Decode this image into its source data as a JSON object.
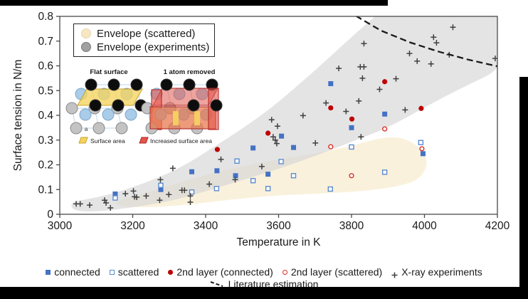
{
  "figure": {
    "background": "#ffffff",
    "redaction_color": "#000000",
    "axis_color": "#4a4a4a",
    "text_color": "#1a1a1a"
  },
  "chart_data": {
    "type": "scatter",
    "title": "",
    "xlabel": "Temperature in K",
    "ylabel": "Surface tension in N/m",
    "xlim": [
      3000,
      4200
    ],
    "ylim": [
      0,
      0.8
    ],
    "xticks": [
      3000,
      3200,
      3400,
      3600,
      3800,
      4000,
      4200
    ],
    "yticks": [
      0,
      0.1,
      0.2,
      0.3,
      0.4,
      0.5,
      0.6,
      0.7,
      0.8
    ],
    "ytick_labels": [
      "0",
      "0.1",
      "0.2",
      "0.3",
      "0.4",
      "0.5",
      "0.6",
      "0.7",
      "0.8"
    ],
    "grid": false,
    "legend_position": "bottom",
    "envelope_legend": [
      {
        "label": "Envelope (scattered)",
        "color": "#F7E7C3"
      },
      {
        "label": "Envelope (experiments)",
        "color": "#A0A0A0"
      }
    ],
    "envelopes": [
      {
        "name": "Envelope (scattered)",
        "fill": "#FAF0D8",
        "opacity": 0.9,
        "outline": [
          [
            3140,
            0.048
          ],
          [
            3250,
            0.092
          ],
          [
            3350,
            0.138
          ],
          [
            3450,
            0.178
          ],
          [
            3560,
            0.212
          ],
          [
            3680,
            0.24
          ],
          [
            3790,
            0.272
          ],
          [
            3880,
            0.31
          ],
          [
            3940,
            0.312
          ],
          [
            3990,
            0.268
          ],
          [
            4012,
            0.205
          ],
          [
            3985,
            0.138
          ],
          [
            3920,
            0.11
          ],
          [
            3820,
            0.092
          ],
          [
            3700,
            0.083
          ],
          [
            3580,
            0.075
          ],
          [
            3460,
            0.058
          ],
          [
            3350,
            0.038
          ],
          [
            3250,
            0.028
          ],
          [
            3175,
            0.03
          ]
        ]
      },
      {
        "name": "Envelope (experiments)",
        "fill": "#D6D6D6",
        "opacity": 0.65,
        "outline": [
          [
            3032,
            0.05
          ],
          [
            3080,
            0.062
          ],
          [
            3150,
            0.085
          ],
          [
            3250,
            0.135
          ],
          [
            3340,
            0.195
          ],
          [
            3420,
            0.27
          ],
          [
            3500,
            0.345
          ],
          [
            3580,
            0.43
          ],
          [
            3660,
            0.53
          ],
          [
            3740,
            0.635
          ],
          [
            3810,
            0.73
          ],
          [
            3865,
            0.8
          ],
          [
            3920,
            0.88
          ],
          [
            4230,
            0.88
          ],
          [
            4230,
            0.6
          ],
          [
            4100,
            0.51
          ],
          [
            4000,
            0.432
          ],
          [
            3900,
            0.35
          ],
          [
            3800,
            0.293
          ],
          [
            3700,
            0.235
          ],
          [
            3600,
            0.183
          ],
          [
            3500,
            0.138
          ],
          [
            3400,
            0.092
          ],
          [
            3300,
            0.052
          ],
          [
            3200,
            0.028
          ],
          [
            3120,
            0.013
          ],
          [
            3060,
            0.01
          ],
          [
            3032,
            0.022
          ]
        ]
      }
    ],
    "series": [
      {
        "name": "connected",
        "marker": "square-filled",
        "color": "#4472C4",
        "points": [
          [
            3152,
            0.082
          ],
          [
            3277,
            0.1
          ],
          [
            3362,
            0.172
          ],
          [
            3431,
            0.176
          ],
          [
            3482,
            0.156
          ],
          [
            3530,
            0.268
          ],
          [
            3571,
            0.162
          ],
          [
            3608,
            0.316
          ],
          [
            3641,
            0.27
          ],
          [
            3743,
            0.528
          ],
          [
            3800,
            0.35
          ],
          [
            3891,
            0.405
          ],
          [
            3996,
            0.245
          ]
        ]
      },
      {
        "name": "scattered",
        "marker": "square-open",
        "color": "#5B8BD0",
        "points": [
          [
            3152,
            0.066
          ],
          [
            3277,
            0.117
          ],
          [
            3362,
            0.09
          ],
          [
            3430,
            0.104
          ],
          [
            3486,
            0.215
          ],
          [
            3530,
            0.136
          ],
          [
            3571,
            0.104
          ],
          [
            3607,
            0.213
          ],
          [
            3641,
            0.156
          ],
          [
            3742,
            0.102
          ],
          [
            3800,
            0.272
          ],
          [
            3891,
            0.17
          ],
          [
            3990,
            0.29
          ]
        ]
      },
      {
        "name": "2nd layer (connected)",
        "marker": "circle-filled",
        "color": "#C00000",
        "points": [
          [
            3432,
            0.262
          ],
          [
            3571,
            0.328
          ],
          [
            3743,
            0.43
          ],
          [
            3801,
            0.385
          ],
          [
            3891,
            0.536
          ],
          [
            3991,
            0.428
          ]
        ]
      },
      {
        "name": "2nd layer (scattered)",
        "marker": "circle-open",
        "color": "#D93025",
        "points": [
          [
            3743,
            0.273
          ],
          [
            3800,
            0.156
          ],
          [
            3891,
            0.345
          ],
          [
            3993,
            0.265
          ]
        ]
      },
      {
        "name": "X-ray experiments",
        "marker": "plus",
        "color": "#3F3F3F",
        "points": [
          [
            3045,
            0.042
          ],
          [
            3056,
            0.042
          ],
          [
            3082,
            0.037
          ],
          [
            3123,
            0.057
          ],
          [
            3127,
            0.046
          ],
          [
            3139,
            0.026
          ],
          [
            3180,
            0.083
          ],
          [
            3202,
            0.094
          ],
          [
            3205,
            0.071
          ],
          [
            3211,
            0.069
          ],
          [
            3237,
            0.074
          ],
          [
            3274,
            0.057
          ],
          [
            3276,
            0.14
          ],
          [
            3299,
            0.08
          ],
          [
            3310,
            0.186
          ],
          [
            3335,
            0.097
          ],
          [
            3342,
            0.097
          ],
          [
            3358,
            0.074
          ],
          [
            3358,
            0.049
          ],
          [
            3410,
            0.122
          ],
          [
            3442,
            0.222
          ],
          [
            3481,
            0.14
          ],
          [
            3554,
            0.193
          ],
          [
            3581,
            0.382
          ],
          [
            3585,
            0.313
          ],
          [
            3591,
            0.3
          ],
          [
            3595,
            0.286
          ],
          [
            3597,
            0.356
          ],
          [
            3667,
            0.399
          ],
          [
            3701,
            0.288
          ],
          [
            3730,
            0.45
          ],
          [
            3765,
            0.59
          ],
          [
            3785,
            0.416
          ],
          [
            3820,
            0.458
          ],
          [
            3824,
            0.596
          ],
          [
            3826,
            0.313
          ],
          [
            3830,
            0.55
          ],
          [
            3834,
            0.596
          ],
          [
            3834,
            0.69
          ],
          [
            3877,
            0.505
          ],
          [
            3922,
            0.548
          ],
          [
            3947,
            0.422
          ],
          [
            3959,
            0.65
          ],
          [
            3980,
            0.619
          ],
          [
            4018,
            0.608
          ],
          [
            4025,
            0.716
          ],
          [
            4033,
            0.693
          ],
          [
            4068,
            0.645
          ],
          [
            4078,
            0.756
          ],
          [
            4194,
            0.63
          ]
        ]
      },
      {
        "name": "Literature estimation",
        "marker": "dashed-line",
        "color": "#1a1a1a",
        "points": [
          [
            3812,
            0.802
          ],
          [
            3880,
            0.743
          ],
          [
            3960,
            0.695
          ],
          [
            4040,
            0.657
          ],
          [
            4120,
            0.625
          ],
          [
            4200,
            0.598
          ]
        ]
      }
    ]
  },
  "inset": {
    "left_title": "Flat surface",
    "right_title": "1 atom removed",
    "a_label": "a",
    "captions": [
      {
        "label": "Surface area",
        "color": "#F5D45E"
      },
      {
        "label": "Increased surface area",
        "color": "#E2574C"
      }
    ],
    "atom_colors": {
      "top_layer": "#0d0d0d",
      "second_layer": "#A9CCE9",
      "bulk": "#C3C3C3"
    },
    "overlay_colors": {
      "surface": "#F5D45E",
      "increased": "#E2574C",
      "increased_bottom": "#E8744A"
    },
    "grid_color": "#BDD7EE"
  }
}
